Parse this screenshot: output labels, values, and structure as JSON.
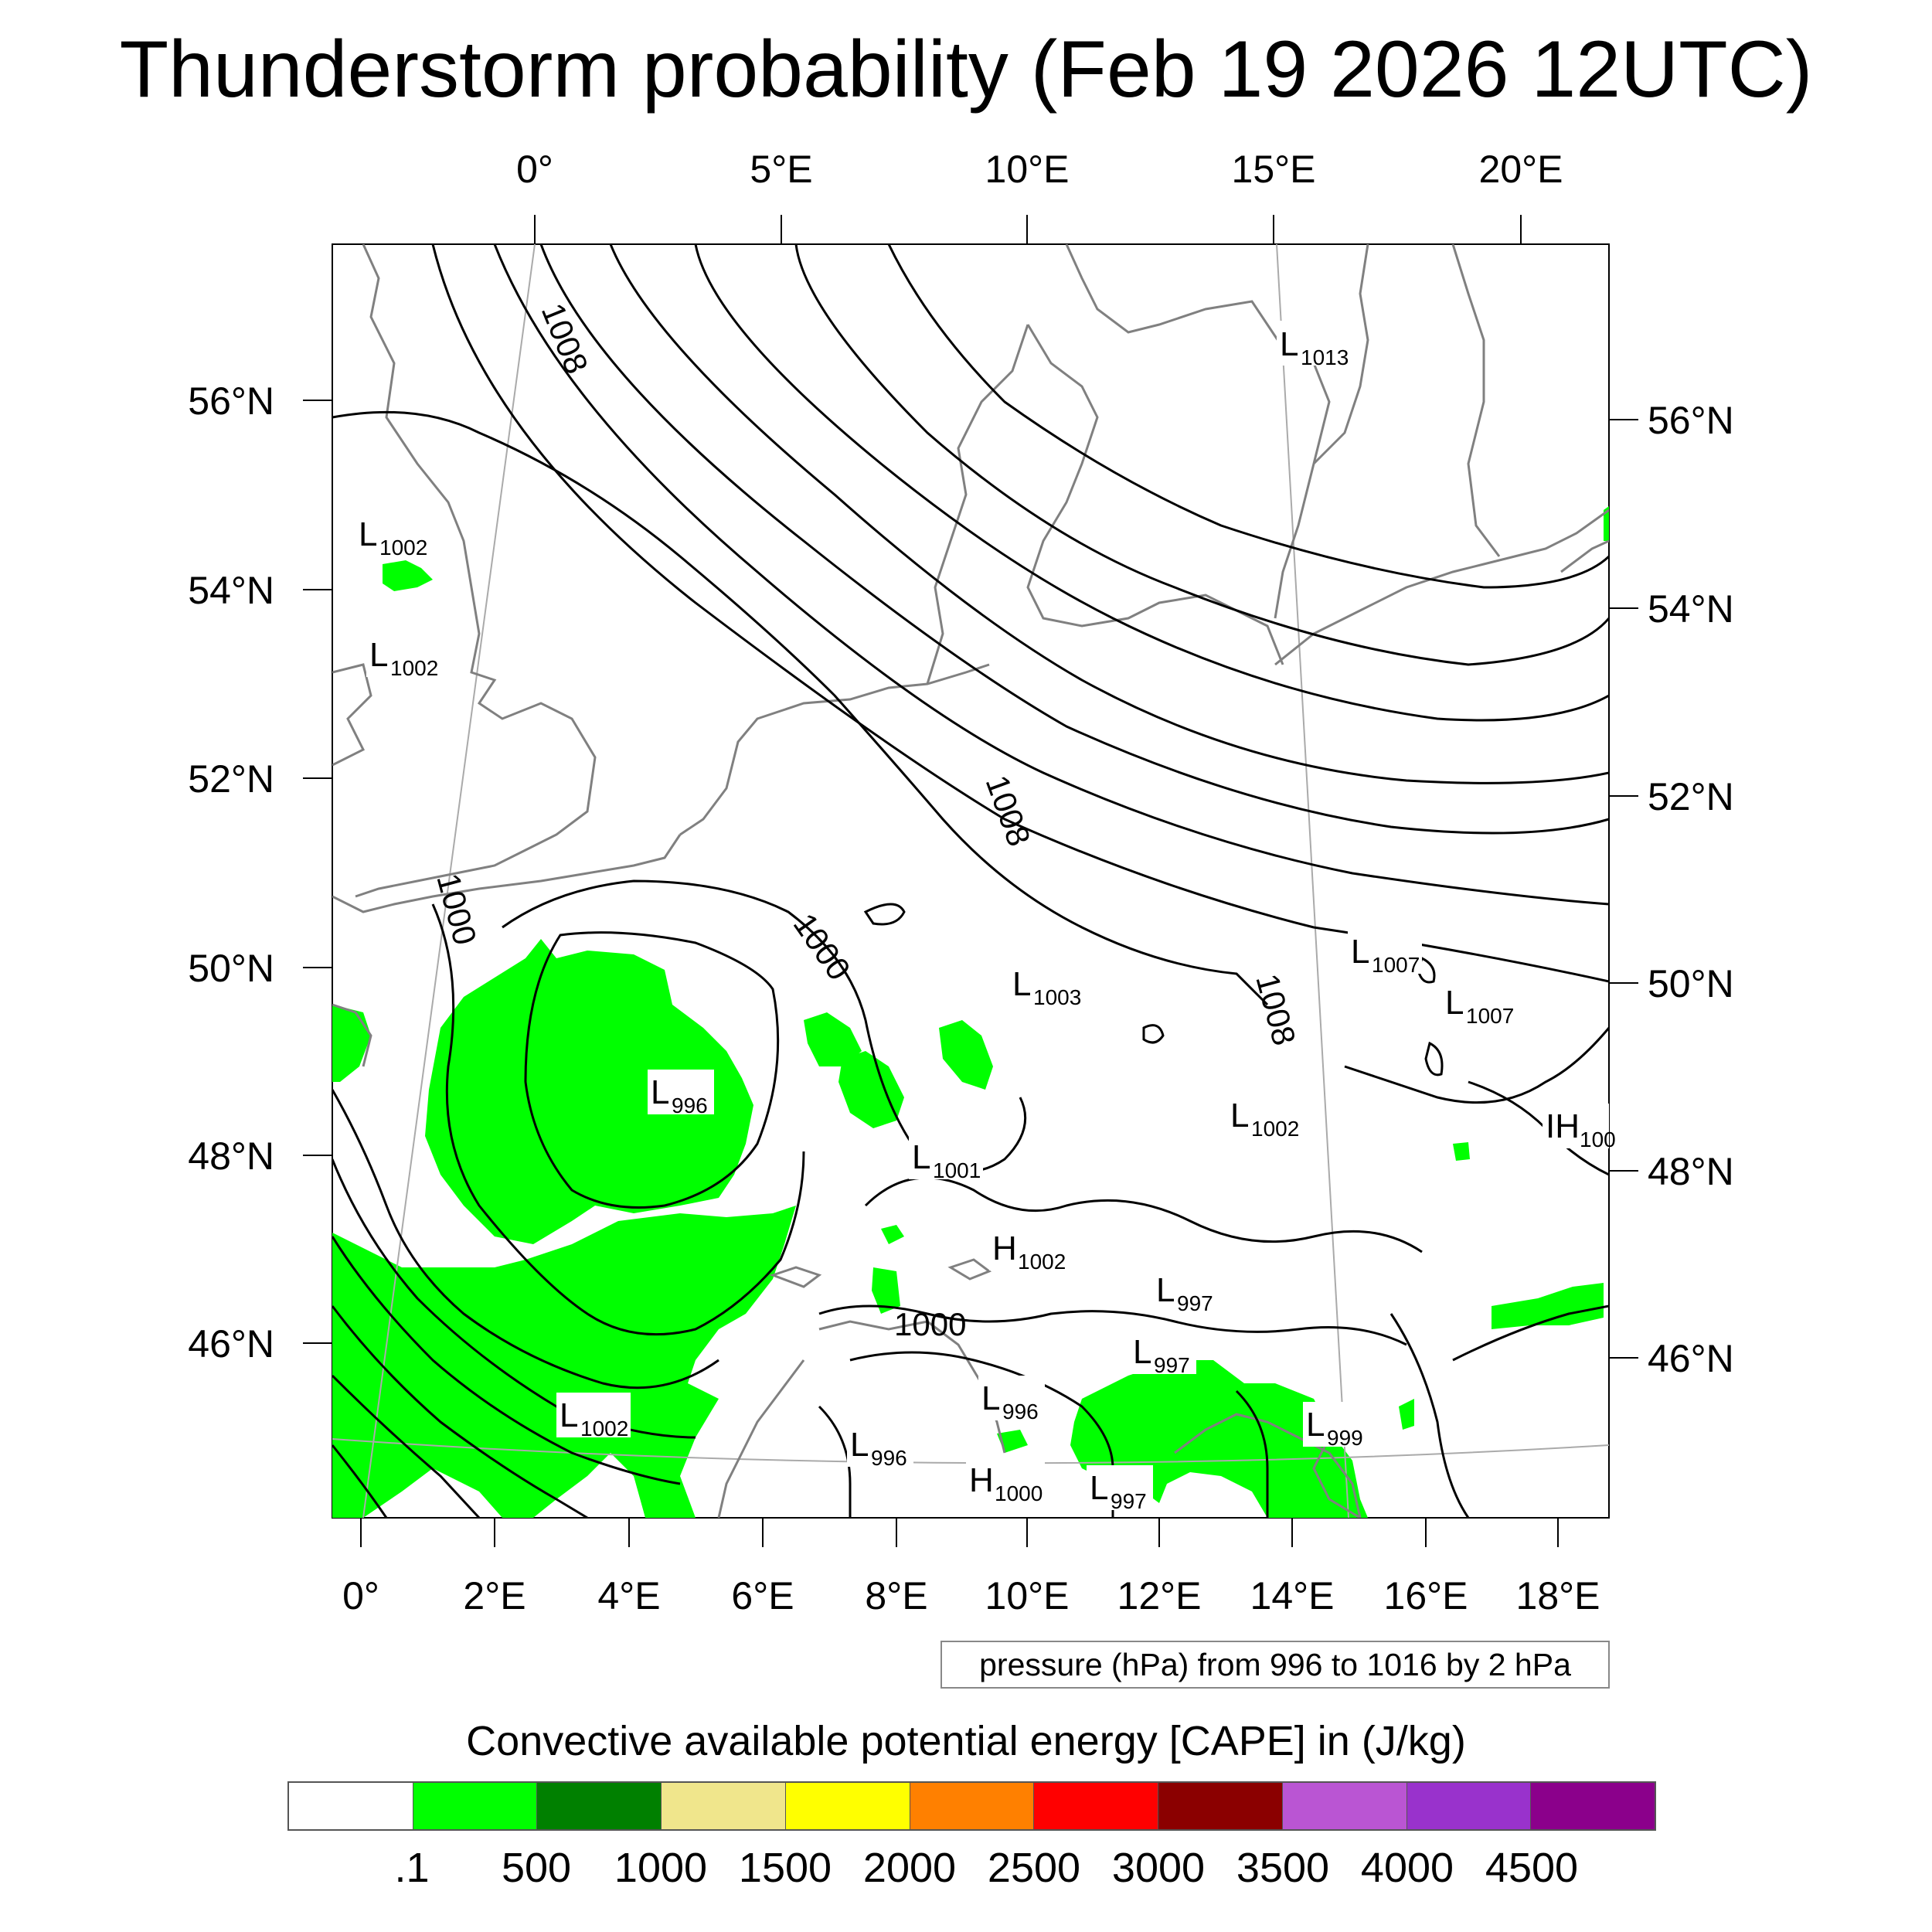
{
  "title": "Thunderstorm probability (Feb 19 2026 12UTC)",
  "map": {
    "top_lon_labels": [
      "0°",
      "5°E",
      "10°E",
      "15°E",
      "20°E"
    ],
    "bottom_lon_labels": [
      "0°",
      "2°E",
      "4°E",
      "6°E",
      "8°E",
      "10°E",
      "12°E",
      "14°E",
      "16°E",
      "18°E"
    ],
    "left_lat_labels": [
      "56°N",
      "54°N",
      "52°N",
      "50°N",
      "48°N",
      "46°N"
    ],
    "right_lat_labels": [
      "56°N",
      "54°N",
      "52°N",
      "50°N",
      "48°N",
      "46°N"
    ],
    "isobar_labels": [
      "1008",
      "1008",
      "1008",
      "1000",
      "1000",
      "1000"
    ],
    "pressure_centers": [
      {
        "type": "L",
        "value": "1013"
      },
      {
        "type": "L",
        "value": "1002"
      },
      {
        "type": "L",
        "value": "1002"
      },
      {
        "type": "L",
        "value": "996"
      },
      {
        "type": "L",
        "value": "1003"
      },
      {
        "type": "L",
        "value": "1007"
      },
      {
        "type": "L",
        "value": "1007"
      },
      {
        "type": "L",
        "value": "1002"
      },
      {
        "type": "L",
        "value": "1001"
      },
      {
        "type": "H",
        "value": "1002"
      },
      {
        "type": "IH",
        "value": "100"
      },
      {
        "type": "L",
        "value": "997"
      },
      {
        "type": "L",
        "value": "997"
      },
      {
        "type": "L",
        "value": "1002"
      },
      {
        "type": "L",
        "value": "996"
      },
      {
        "type": "L",
        "value": "996"
      },
      {
        "type": "L",
        "value": "999"
      },
      {
        "type": "H",
        "value": "1000"
      },
      {
        "type": "L",
        "value": "997"
      }
    ],
    "colors": {
      "cape_low": "#00ff00",
      "coast": "#808080",
      "isobar": "#000000",
      "graticule": "#aaaaaa"
    }
  },
  "pressure_note": "pressure (hPa) from 996 to 1016 by 2 hPa",
  "colorbar": {
    "title": "Convective available potential energy [CAPE] in (J/kg)",
    "labels": [
      ".1",
      "500",
      "1000",
      "1500",
      "2000",
      "2500",
      "3000",
      "3500",
      "4000",
      "4500"
    ],
    "colors": [
      "#ffffff",
      "#00ff00",
      "#008000",
      "#f0e68c",
      "#ffff00",
      "#ff8000",
      "#ff0000",
      "#8b0000",
      "#ba55d3",
      "#9932cc",
      "#8b008b"
    ]
  }
}
